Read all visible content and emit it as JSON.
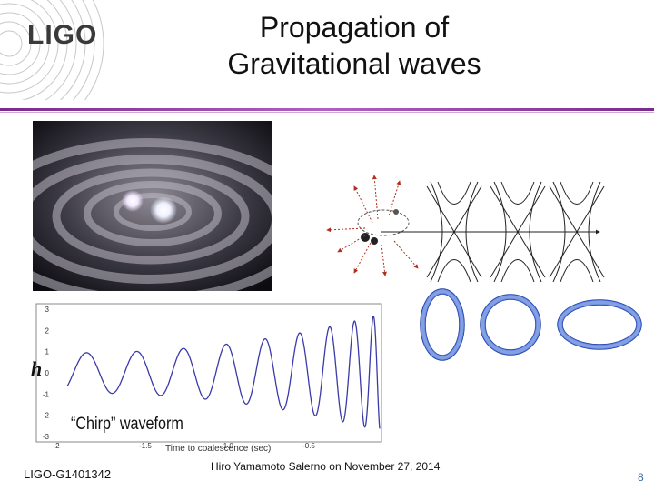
{
  "logo": {
    "text": "LIGO"
  },
  "title": {
    "line1": "Propagation of",
    "line2": "Gravitational waves"
  },
  "figure": {
    "y_symbol": "h",
    "annotation": "“Chirp” waveform",
    "xlabel": "Time to coalescence (sec)",
    "x_ticks": [
      "-2",
      "-1.5",
      "-1.0",
      "-0.5"
    ],
    "y_ticks": [
      "3",
      "2",
      "1",
      "0",
      "-1",
      "-2",
      "-3"
    ]
  },
  "footer": {
    "doc_id": "LIGO-G1401342",
    "presenter": "Hiro Yamamoto   Salerno on November 27, 2014",
    "page_number": "8"
  },
  "colors": {
    "title_rule": "#9a4aaa",
    "ring_fill": "#6f8fe0",
    "ring_stroke": "#1f3fa8",
    "wave": "#3a3aa8",
    "arrow": "#b03020"
  }
}
